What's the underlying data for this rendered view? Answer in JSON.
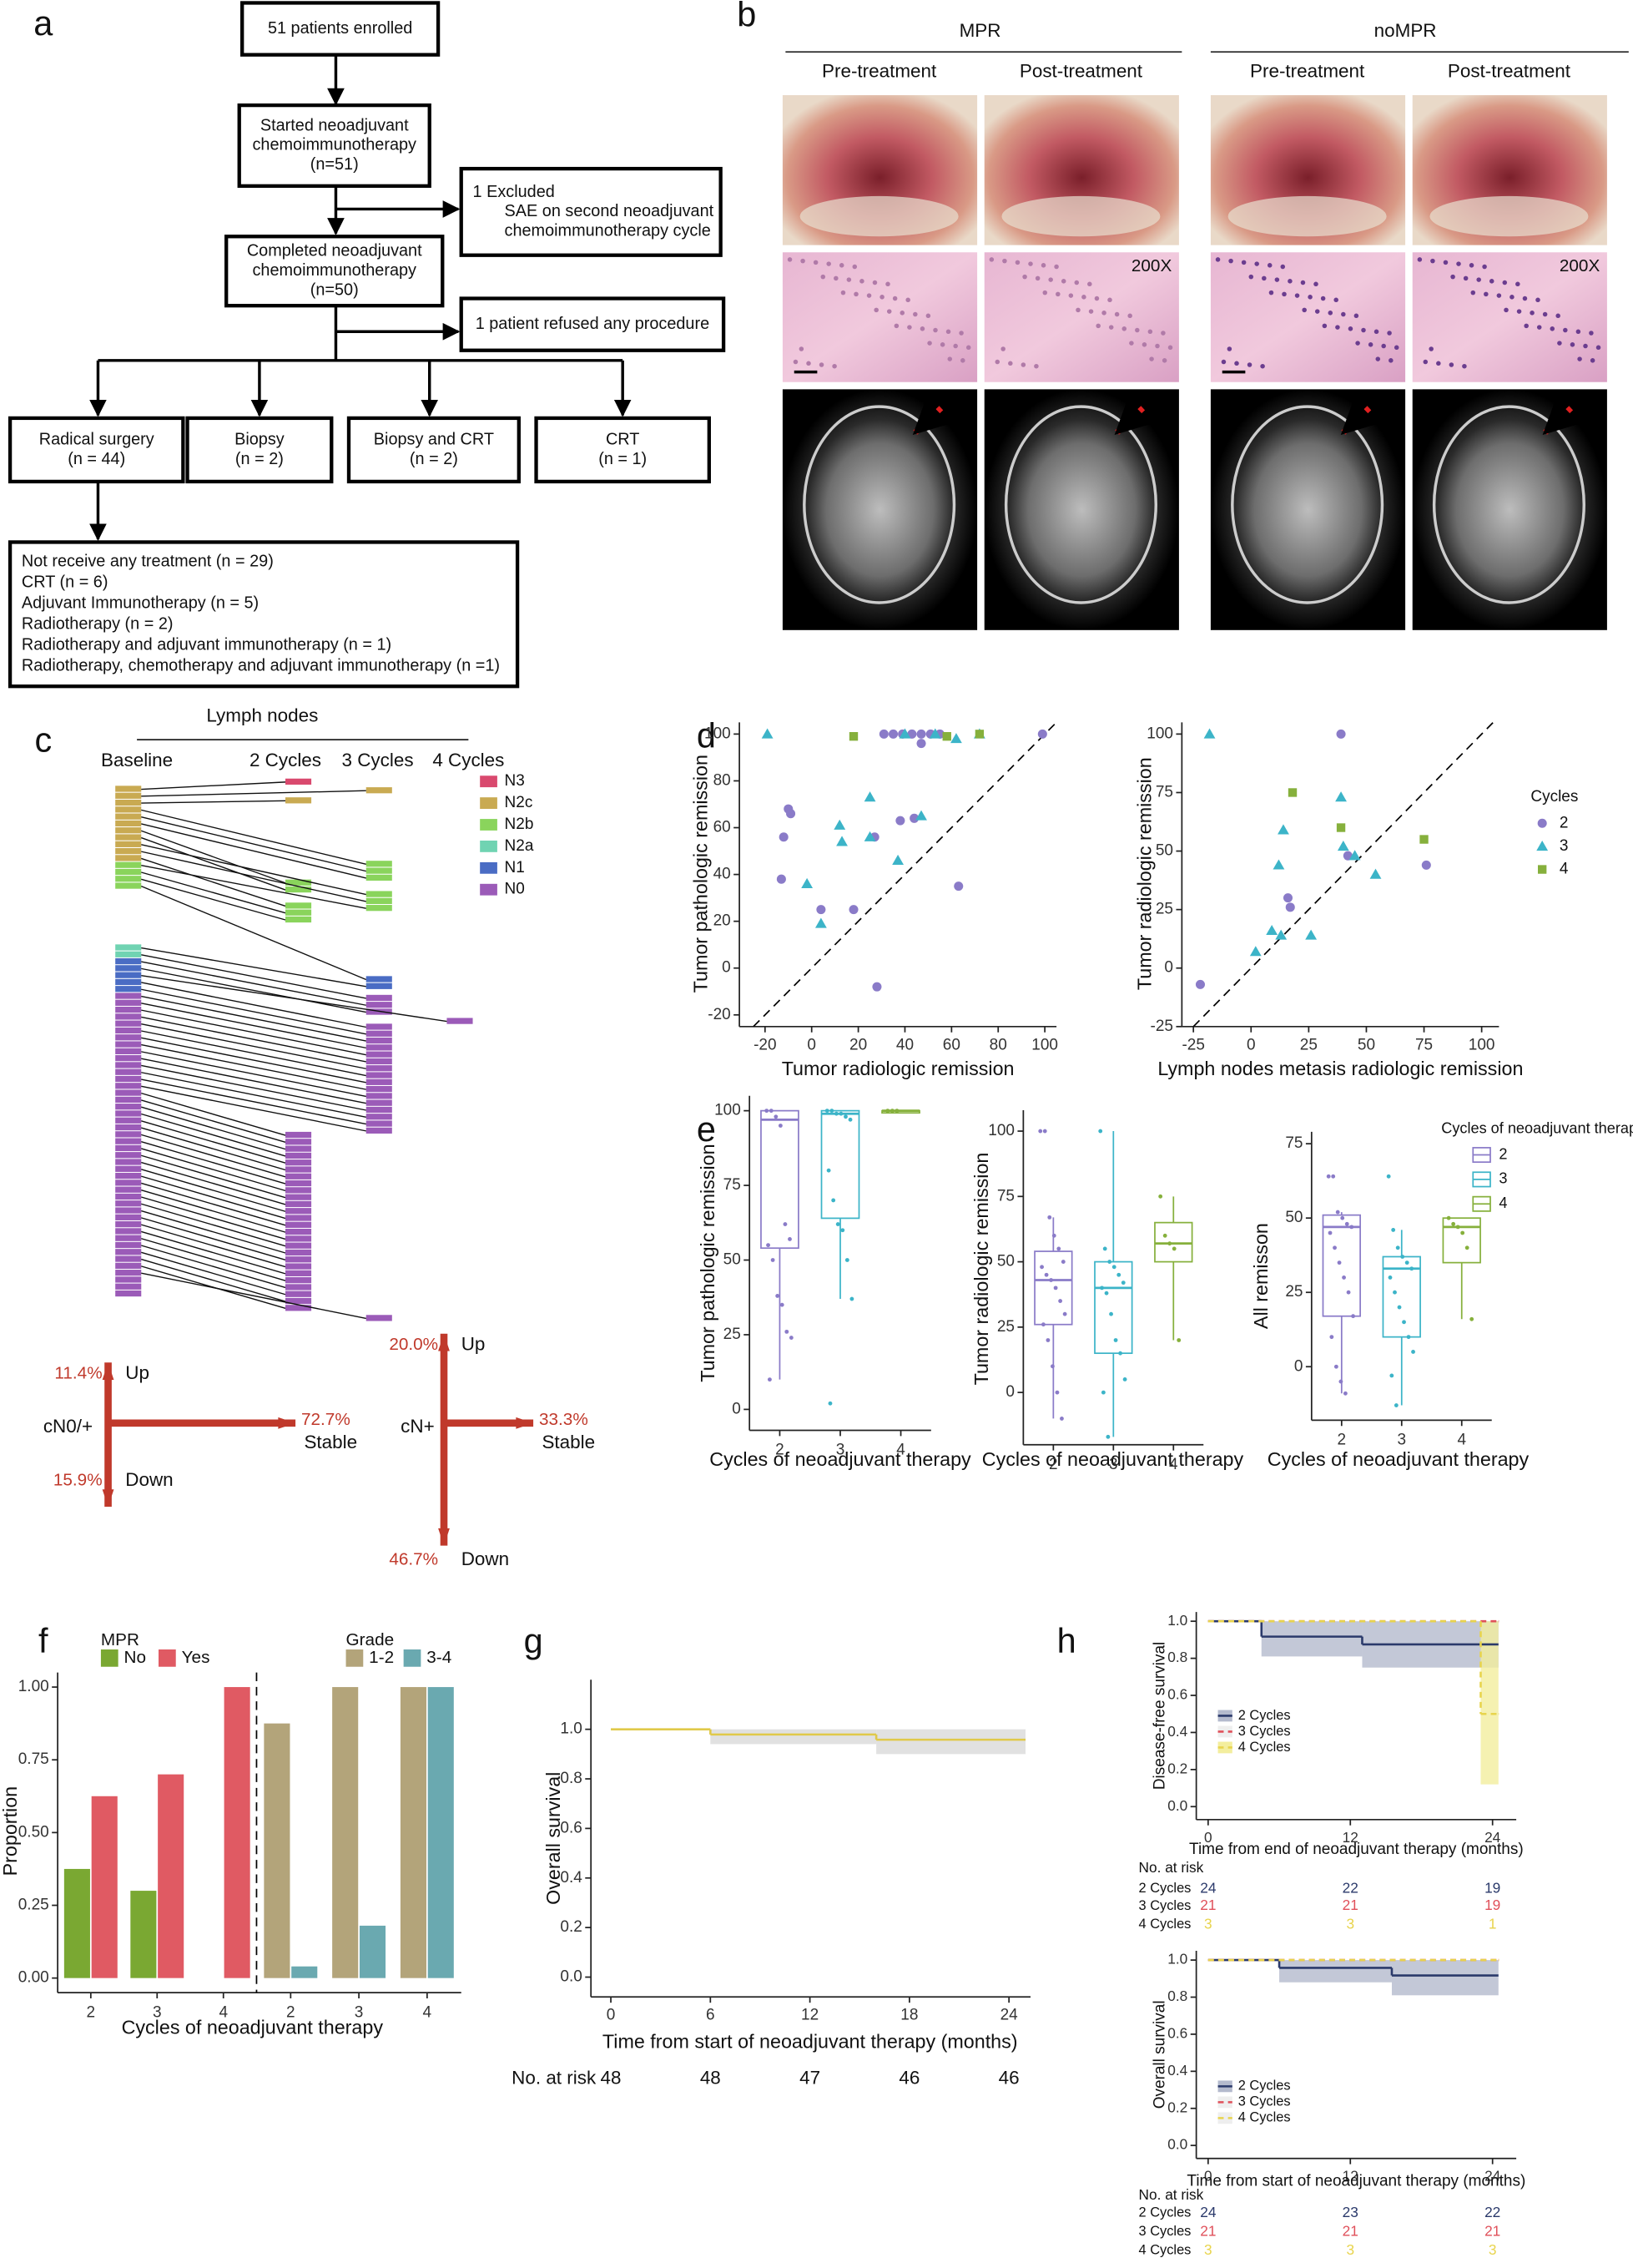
{
  "figure": {
    "panel_labels": [
      "a",
      "b",
      "c",
      "d",
      "e",
      "f",
      "g",
      "h"
    ],
    "a": {
      "nodes": [
        {
          "lines": [
            "51 patients enrolled"
          ]
        },
        {
          "lines": [
            "Started neoadjuvant",
            "chemoimmunotherapy",
            "(n=51)"
          ]
        },
        {
          "lines": [
            "1 Excluded",
            "SAE on second neoadjuvant",
            "chemoimmunotherapy cycle"
          ]
        },
        {
          "lines": [
            "Completed neoadjuvant",
            "chemoimmunotherapy",
            "(n=50)"
          ]
        },
        {
          "lines": [
            "1 patient refused any procedure"
          ]
        },
        {
          "lines": [
            "Radical surgery",
            "(n = 44)"
          ]
        },
        {
          "lines": [
            "Biopsy",
            "(n = 2)"
          ]
        },
        {
          "lines": [
            "Biopsy and CRT",
            "(n = 2)"
          ]
        },
        {
          "lines": [
            "CRT",
            "(n = 1)"
          ]
        },
        {
          "lines": [
            "Not receive any treatment (n = 29)",
            "CRT (n = 6)",
            "Adjuvant Immunotherapy (n = 5)",
            "Radiotherapy  (n = 2)",
            "Radiotherapy and adjuvant immunotherapy (n = 1)",
            "Radiotherapy, chemotherapy and adjuvant immunotherapy (n =1)"
          ]
        }
      ]
    },
    "b": {
      "groups": [
        "MPR",
        "noMPR"
      ],
      "columns": [
        "Pre-treatment",
        "Post-treatment",
        "Pre-treatment",
        "Post-treatment"
      ],
      "magnification": "200X"
    },
    "c": {
      "title": "Lymph nodes",
      "columns": [
        "Baseline",
        "2 Cycles",
        "3 Cycles",
        "4 Cycles"
      ],
      "legend": [
        {
          "label": "N3",
          "color": "#d9496e"
        },
        {
          "label": "N2c",
          "color": "#c9aa52"
        },
        {
          "label": "N2b",
          "color": "#8ad45c"
        },
        {
          "label": "N2a",
          "color": "#70d3b2"
        },
        {
          "label": "N1",
          "color": "#4a6cc4"
        },
        {
          "label": "N0",
          "color": "#9b5bb8"
        }
      ],
      "shifts": [
        {
          "group": "cN0/+",
          "up": "11.4%",
          "up_label": "Up",
          "stable": "72.7%",
          "stable_label": "Stable",
          "down": "15.9%",
          "down_label": "Down"
        },
        {
          "group": "cN+",
          "up": "20.0%",
          "up_label": "Up",
          "stable": "33.3%",
          "stable_label": "Stable",
          "down": "46.7%",
          "down_label": "Down"
        }
      ]
    }
  },
  "chart_data": [
    {
      "type": "scatter",
      "x_label": "Tumor radiologic remission",
      "y_label": "Tumor pathologic remission",
      "xlim": [
        -31,
        105
      ],
      "ylim": [
        -25,
        105
      ],
      "xticks": [
        -20,
        0,
        20,
        40,
        60,
        80,
        100
      ],
      "yticks": [
        -20,
        0,
        20,
        40,
        60,
        80,
        100
      ],
      "diagonal": true,
      "series": [
        {
          "color": "#8a7bc8",
          "marker": "circle",
          "x": [
            -12,
            -10,
            -9,
            -13,
            4,
            18,
            27,
            38,
            44,
            28,
            63,
            31,
            35,
            39,
            43,
            47,
            51,
            55,
            47,
            99
          ],
          "values": [
            56,
            68,
            66,
            38,
            25,
            25,
            56,
            63,
            64,
            -8,
            35,
            100,
            100,
            100,
            100,
            100,
            100,
            100,
            96,
            100
          ]
        },
        {
          "color": "#3cb4c8",
          "marker": "triangle",
          "x": [
            -19,
            -2,
            4,
            12,
            13,
            25,
            25,
            37,
            47,
            40,
            53,
            62,
            72
          ],
          "values": [
            100,
            36,
            19,
            61,
            54,
            73,
            56,
            46,
            65,
            100,
            100,
            98,
            100
          ]
        },
        {
          "color": "#86b03c",
          "marker": "square",
          "x": [
            18,
            58,
            72
          ],
          "values": [
            99,
            99,
            100
          ]
        }
      ]
    },
    {
      "type": "scatter",
      "x_label": "Lymph nodes metasis radiologic remission",
      "y_label": "Tumor radiologic remission",
      "xlim": [
        -30,
        107.5
      ],
      "ylim": [
        -25,
        105
      ],
      "xticks": [
        -25,
        0,
        25,
        50,
        75,
        100
      ],
      "yticks": [
        -25,
        0,
        25,
        50,
        75,
        100
      ],
      "diagonal": true,
      "legend": true,
      "legend_title": "Cycles",
      "series": [
        {
          "name": "2",
          "color": "#8a7bc8",
          "marker": "circle",
          "x": [
            -22,
            16,
            17,
            39,
            42,
            76
          ],
          "values": [
            -7,
            30,
            26,
            100,
            48,
            44
          ]
        },
        {
          "name": "3",
          "color": "#3cb4c8",
          "marker": "triangle",
          "x": [
            -18,
            2,
            9,
            13,
            12,
            14,
            26,
            39,
            40,
            45,
            54
          ],
          "values": [
            100,
            7,
            16,
            14,
            44,
            59,
            14,
            73,
            52,
            48,
            40
          ]
        },
        {
          "name": "4",
          "color": "#86b03c",
          "marker": "square",
          "x": [
            18,
            39,
            75
          ],
          "values": [
            75,
            60,
            55
          ]
        }
      ]
    },
    {
      "type": "box",
      "x_label": "Cycles of neoadjuvant therapy",
      "y_label": "Tumor pathologic remission",
      "categories": [
        "2",
        "3",
        "4"
      ],
      "colors": [
        "#8a7bc8",
        "#3cb4c8",
        "#86b03c"
      ],
      "ylim": [
        -7,
        105
      ],
      "yticks": [
        0,
        25,
        50,
        75,
        100
      ],
      "boxes": [
        {
          "low": 10,
          "q1": 54,
          "median": 97,
          "q3": 100,
          "high": 100
        },
        {
          "low": 37,
          "q1": 64,
          "median": 99,
          "q3": 100,
          "high": 100
        },
        {
          "low": 100,
          "q1": 100,
          "median": 100,
          "q3": 100,
          "high": 100
        }
      ],
      "points": [
        [
          100,
          100,
          98,
          95,
          62,
          57,
          55,
          50,
          38,
          35,
          26,
          24,
          10
        ],
        [
          100,
          100,
          99,
          99,
          98,
          97,
          80,
          70,
          62,
          60,
          50,
          37,
          2
        ],
        [
          100,
          100,
          100
        ]
      ]
    },
    {
      "type": "box",
      "x_label": "Cycles of neoadjuvant therapy",
      "y_label": "Tumor radiologic remission",
      "categories": [
        "2",
        "3",
        "4"
      ],
      "colors": [
        "#8a7bc8",
        "#3cb4c8",
        "#86b03c"
      ],
      "ylim": [
        -20,
        108
      ],
      "yticks": [
        0,
        25,
        50,
        75,
        100
      ],
      "boxes": [
        {
          "low": -10,
          "q1": 26,
          "median": 43,
          "q3": 54,
          "high": 67
        },
        {
          "low": -17,
          "q1": 15,
          "median": 40,
          "q3": 50,
          "high": 100
        },
        {
          "low": 20,
          "q1": 50,
          "median": 57,
          "q3": 65,
          "high": 75
        }
      ],
      "points": [
        [
          100,
          100,
          67,
          60,
          55,
          50,
          48,
          45,
          43,
          40,
          35,
          30,
          26,
          20,
          10,
          0,
          -10
        ],
        [
          100,
          55,
          50,
          48,
          45,
          42,
          40,
          38,
          30,
          20,
          15,
          5,
          0,
          -17
        ],
        [
          75,
          60,
          57,
          55,
          20
        ]
      ]
    },
    {
      "type": "box",
      "x_label": "Cycles of neoadjuvant therapy",
      "y_label": "All remisson",
      "categories": [
        "2",
        "3",
        "4"
      ],
      "colors": [
        "#8a7bc8",
        "#3cb4c8",
        "#86b03c"
      ],
      "ylim": [
        -18,
        79
      ],
      "yticks": [
        0,
        25,
        50,
        75
      ],
      "legend": true,
      "legend_title": "Cycles of neoadjuvant therapy",
      "boxes": [
        {
          "low": -9,
          "q1": 17,
          "median": 47,
          "q3": 51,
          "high": 52
        },
        {
          "low": -13,
          "q1": 10,
          "median": 33,
          "q3": 37,
          "high": 46
        },
        {
          "low": 16,
          "q1": 35,
          "median": 47,
          "q3": 50,
          "high": 50
        }
      ],
      "points": [
        [
          64,
          64,
          52,
          50,
          48,
          47,
          45,
          40,
          35,
          30,
          25,
          17,
          10,
          0,
          -5,
          -9
        ],
        [
          64,
          46,
          40,
          37,
          35,
          33,
          30,
          25,
          20,
          15,
          10,
          5,
          -3,
          -13
        ],
        [
          50,
          48,
          47,
          45,
          40,
          16
        ]
      ]
    },
    {
      "type": "grouped_bar",
      "x_label": "Cycles of neoadjuvant therapy",
      "y_label": "Proportion",
      "ylim": [
        -0.05,
        1.05
      ],
      "yticks": [
        {
          "value": 0,
          "label": "0.00"
        },
        {
          "value": 0.25,
          "label": "0.25"
        },
        {
          "value": 0.5,
          "label": "0.50"
        },
        {
          "value": 0.75,
          "label": "0.75"
        },
        {
          "value": 1,
          "label": "1.00"
        }
      ],
      "groups": [
        {
          "title": "MPR",
          "categories": [
            "2",
            "3",
            "4"
          ],
          "series": [
            {
              "name": "No",
              "color": "#7aa832",
              "values": [
                0.375,
                0.3,
                0
              ]
            },
            {
              "name": "Yes",
              "color": "#e05a63",
              "values": [
                0.625,
                0.7,
                1
              ]
            }
          ]
        },
        {
          "title": "Grade",
          "categories": [
            "2",
            "3",
            "4"
          ],
          "series": [
            {
              "name": "1-2",
              "color": "#b3a47a",
              "values": [
                0.875,
                1,
                1
              ]
            },
            {
              "name": "3-4",
              "color": "#6aa9b0",
              "values": [
                0.04,
                0.18,
                1
              ]
            }
          ]
        }
      ]
    },
    {
      "type": "km",
      "x_label": "Time from start of neoadjuvant therapy (months)",
      "y_label": "Overall survival",
      "xlim": [
        -1.2,
        25.3
      ],
      "xticks": [
        0,
        6,
        12,
        18,
        24
      ],
      "ylim": [
        -0.08,
        1.2
      ],
      "yticks": [
        {
          "value": 0,
          "label": "0.0"
        },
        0.2,
        0.4,
        0.6,
        0.8,
        {
          "value": 1,
          "label": "1.0"
        }
      ],
      "series": [
        {
          "color": "#e0c94a",
          "band_color": "#d9d9d9",
          "x": [
            0,
            6,
            16,
            25
          ],
          "values": [
            1,
            0.979,
            0.958,
            0.958
          ],
          "lower": [
            1,
            0.94,
            0.9,
            0.9
          ],
          "upper": [
            1,
            1,
            1,
            1
          ]
        }
      ],
      "risk_table": {
        "title": "No. at risk",
        "rows": [
          {
            "values": [
              48,
              48,
              47,
              46,
              46
            ]
          }
        ]
      }
    },
    {
      "type": "km",
      "x_label": "Time from end of neoadjuvant therapy (months)",
      "y_label": "Disease-free survival",
      "xlim": [
        -1,
        26
      ],
      "xticks": [
        0,
        12,
        24
      ],
      "ylim": [
        -0.07,
        1.05
      ],
      "yticks": [
        {
          "value": 0,
          "label": "0.0"
        },
        0.2,
        0.4,
        0.6,
        0.8,
        {
          "value": 1,
          "label": "1.0"
        }
      ],
      "legend": true,
      "series": [
        {
          "name": "2 Cycles",
          "color": "#2b3a6b",
          "band_color": "#b4bacd",
          "x": [
            0,
            4.5,
            13,
            24.5
          ],
          "values": [
            1,
            0.917,
            0.875,
            0.875
          ],
          "lower": [
            1,
            0.81,
            0.75,
            0.75
          ],
          "upper": [
            1,
            1,
            1,
            1
          ]
        },
        {
          "name": "3 Cycles",
          "color": "#e0505a",
          "linestyle": "dashed",
          "x": [
            0,
            24.5
          ],
          "values": [
            1,
            1
          ]
        },
        {
          "name": "4 Cycles",
          "color": "#e8d44d",
          "band_color": "#f3ee9e",
          "linestyle": "dashed",
          "x": [
            0,
            23,
            24.5
          ],
          "values": [
            1,
            0.5,
            0.5
          ],
          "lower": [
            1,
            0.12,
            0.12
          ],
          "upper": [
            1,
            1,
            1
          ]
        }
      ],
      "risk_table": {
        "title": "No. at risk",
        "rows": [
          {
            "label": "2 Cycles",
            "values": [
              24,
              22,
              19
            ]
          },
          {
            "label": "3 Cycles",
            "values": [
              21,
              21,
              19
            ]
          },
          {
            "label": "4 Cycles",
            "values": [
              3,
              3,
              1
            ]
          }
        ]
      }
    },
    {
      "type": "km",
      "x_label": "Time from start of neoadjuvant therapy (months)",
      "y_label": "Overall survival",
      "xlim": [
        -1,
        26
      ],
      "xticks": [
        0,
        12,
        24
      ],
      "ylim": [
        -0.07,
        1.05
      ],
      "yticks": [
        {
          "value": 0,
          "label": "0.0"
        },
        0.2,
        0.4,
        0.6,
        0.8,
        {
          "value": 1,
          "label": "1.0"
        }
      ],
      "legend": true,
      "series": [
        {
          "name": "2 Cycles",
          "color": "#2b3a6b",
          "band_color": "#b4bacd",
          "x": [
            0,
            6,
            15.5,
            24.5
          ],
          "values": [
            1,
            0.958,
            0.917,
            0.917
          ],
          "lower": [
            1,
            0.88,
            0.81,
            0.81
          ],
          "upper": [
            1,
            1,
            1,
            1
          ]
        },
        {
          "name": "3 Cycles",
          "color": "#e0505a",
          "linestyle": "dashed",
          "x": [
            0,
            24.5
          ],
          "values": [
            1,
            1
          ]
        },
        {
          "name": "4 Cycles",
          "color": "#e8d44d",
          "linestyle": "dashed",
          "x": [
            0,
            24.5
          ],
          "values": [
            1,
            1
          ]
        }
      ],
      "risk_table": {
        "title": "No. at risk",
        "rows": [
          {
            "label": "2 Cycles",
            "values": [
              24,
              23,
              22
            ]
          },
          {
            "label": "3 Cycles",
            "values": [
              21,
              21,
              21
            ]
          },
          {
            "label": "4 Cycles",
            "values": [
              3,
              3,
              3
            ]
          }
        ]
      }
    }
  ]
}
